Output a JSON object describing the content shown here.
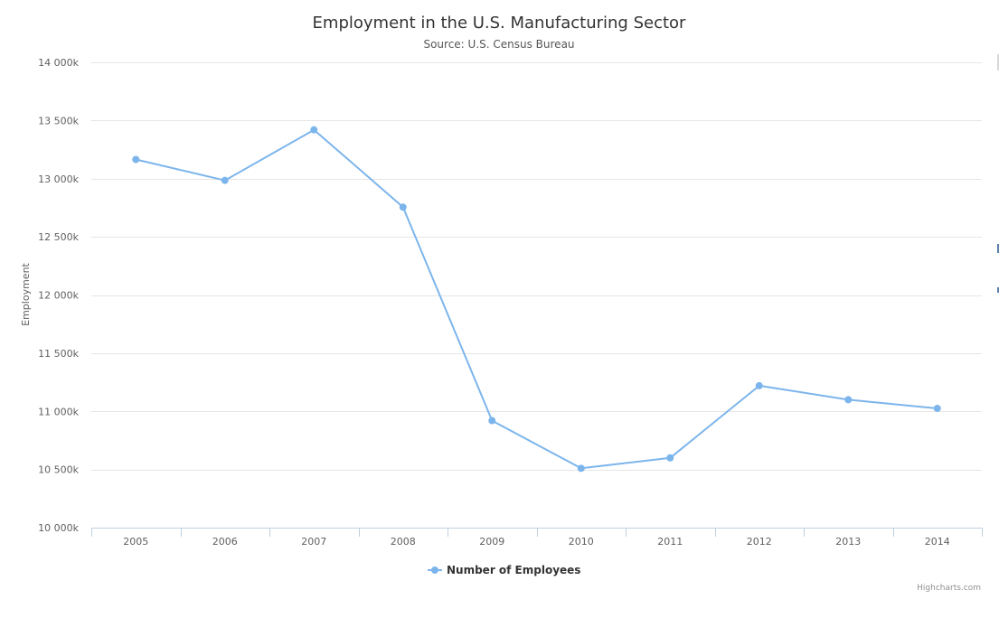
{
  "chart_data": {
    "type": "line",
    "title": "Employment in the U.S. Manufacturing Sector",
    "subtitle": "Source: U.S. Census Bureau",
    "xlabel": "",
    "ylabel": "Employment",
    "categories": [
      "2005",
      "2006",
      "2007",
      "2008",
      "2009",
      "2010",
      "2011",
      "2012",
      "2013",
      "2014"
    ],
    "series": [
      {
        "name": "Number of Employees",
        "color": "#7cb5ec",
        "values": [
          13165,
          12985,
          13420,
          12755,
          10920,
          10510,
          10600,
          11220,
          11100,
          11025
        ]
      }
    ],
    "ylim": [
      10000,
      14000
    ],
    "yticks": [
      10000,
      10500,
      11000,
      11500,
      12000,
      12500,
      13000,
      13500,
      14000
    ],
    "ytick_labels": [
      "10 000k",
      "10 500k",
      "11 000k",
      "11 500k",
      "12 000k",
      "12 500k",
      "13 000k",
      "13 500k",
      "14 000k"
    ],
    "grid": true,
    "legend_position": "bottom-center",
    "credits": "Highcharts.com"
  }
}
